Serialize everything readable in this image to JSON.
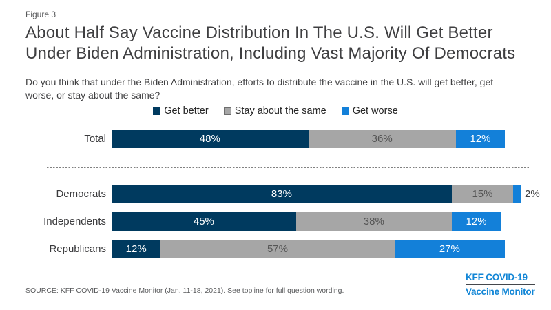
{
  "figure_label": "Figure 3",
  "title_lines": [
    "About Half Say Vaccine Distribution In The U.S. Will Get Better",
    "Under Biden Administration, Including Vast Majority Of Democrats"
  ],
  "subtitle_lines": [
    "Do you think that under the Biden Administration, efforts to distribute the vaccine in the U.S. will get better, get",
    "worse, or stay about the same?"
  ],
  "source": "SOURCE: KFF COVID-19 Vaccine Monitor (Jan. 11-18, 2021). See topline for full question wording.",
  "logo": {
    "line1": "KFF COVID-19",
    "line2": "Vaccine Monitor",
    "text_color": "#1286D6",
    "rule_color": "#44474C"
  },
  "colors": {
    "title_text": "#3F3F41",
    "muted_text": "#58595B",
    "divider": "#808080",
    "background": "#FFFFFF"
  },
  "chart_data": {
    "type": "bar",
    "orientation": "horizontal_stacked",
    "title": "About Half Say Vaccine Distribution In The U.S. Will Get Better Under Biden Administration, Including Vast Majority Of Democrats",
    "categories": [
      "Total",
      "Democrats",
      "Independents",
      "Republicans"
    ],
    "series": [
      {
        "name": "Get better",
        "color": "#003A5F",
        "label_color": "#FFFFFF",
        "values": [
          48,
          83,
          45,
          12
        ]
      },
      {
        "name": "Stay about the same",
        "color": "#A6A6A6",
        "label_color": "#545454",
        "swatch_border": "#6E6E6E",
        "values": [
          36,
          15,
          38,
          57
        ]
      },
      {
        "name": "Get worse",
        "color": "#1380D9",
        "label_color": "#FFFFFF",
        "values": [
          12,
          2,
          12,
          27
        ]
      }
    ],
    "value_suffix": "%",
    "xlim": [
      0,
      100
    ],
    "grid": false,
    "legend_position": "top-center",
    "separator_after_category": "Total"
  }
}
